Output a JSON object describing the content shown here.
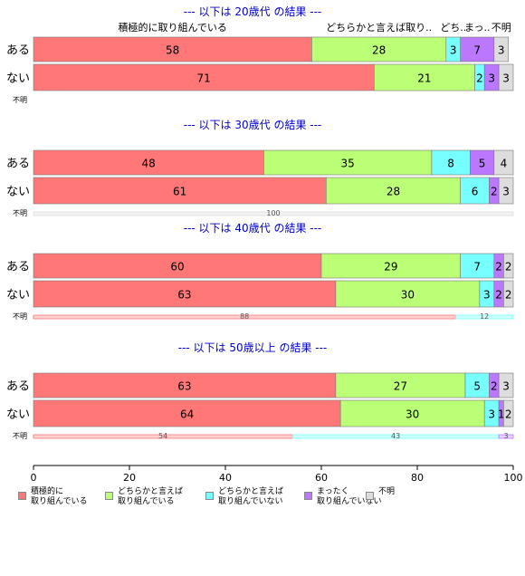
{
  "chart_data": {
    "type": "bar",
    "orientation": "horizontal",
    "stacked": true,
    "xlim": [
      0,
      100
    ],
    "xticks": [
      0,
      20,
      40,
      60,
      80,
      100
    ],
    "categories": [
      {
        "key": "c1",
        "label": "積極的に\n取り組んでいる",
        "color": "#ff7777"
      },
      {
        "key": "c2",
        "label": "どちらかと言えば\n取り組んでいる",
        "color": "#bbff77"
      },
      {
        "key": "c3",
        "label": "どちらかと言えば\n取り組んでいない",
        "color": "#77ffff"
      },
      {
        "key": "c4",
        "label": "まったく\n取り組んでいない",
        "color": "#bb77ff"
      },
      {
        "key": "c5",
        "label": "不明",
        "color": "#dddddd"
      }
    ],
    "panels": [
      {
        "title": "--- 以下は 20歳代 の結果 ---",
        "header_labels": [
          "積極的に取り組んでいる",
          "どちらかと言えば取り..",
          "どち..",
          "まっ..",
          "不明"
        ],
        "rows": [
          {
            "label": "ある",
            "values": [
              58,
              28,
              3,
              7,
              3
            ]
          },
          {
            "label": "ない",
            "values": [
              71,
              21,
              2,
              3,
              3
            ]
          }
        ],
        "unknown": {
          "label": "不明",
          "values": []
        }
      },
      {
        "title": "--- 以下は 30歳代 の結果 ---",
        "rows": [
          {
            "label": "ある",
            "values": [
              48,
              35,
              8,
              5,
              4
            ]
          },
          {
            "label": "ない",
            "values": [
              61,
              28,
              6,
              2,
              3
            ]
          }
        ],
        "unknown": {
          "label": "不明",
          "values": [
            0,
            0,
            0,
            0,
            100
          ]
        }
      },
      {
        "title": "--- 以下は 40歳代 の結果 ---",
        "rows": [
          {
            "label": "ある",
            "values": [
              60,
              29,
              7,
              2,
              2
            ]
          },
          {
            "label": "ない",
            "values": [
              63,
              30,
              3,
              2,
              2
            ]
          }
        ],
        "unknown": {
          "label": "不明",
          "values": [
            88,
            0,
            12,
            0,
            0
          ]
        }
      },
      {
        "title": "--- 以下は 50歳以上 の結果 ---",
        "rows": [
          {
            "label": "ある",
            "values": [
              63,
              27,
              5,
              2,
              3
            ]
          },
          {
            "label": "ない",
            "values": [
              64,
              30,
              3,
              1,
              2
            ]
          }
        ],
        "unknown": {
          "label": "不明",
          "values": [
            54,
            0,
            43,
            3,
            0
          ]
        }
      }
    ]
  }
}
